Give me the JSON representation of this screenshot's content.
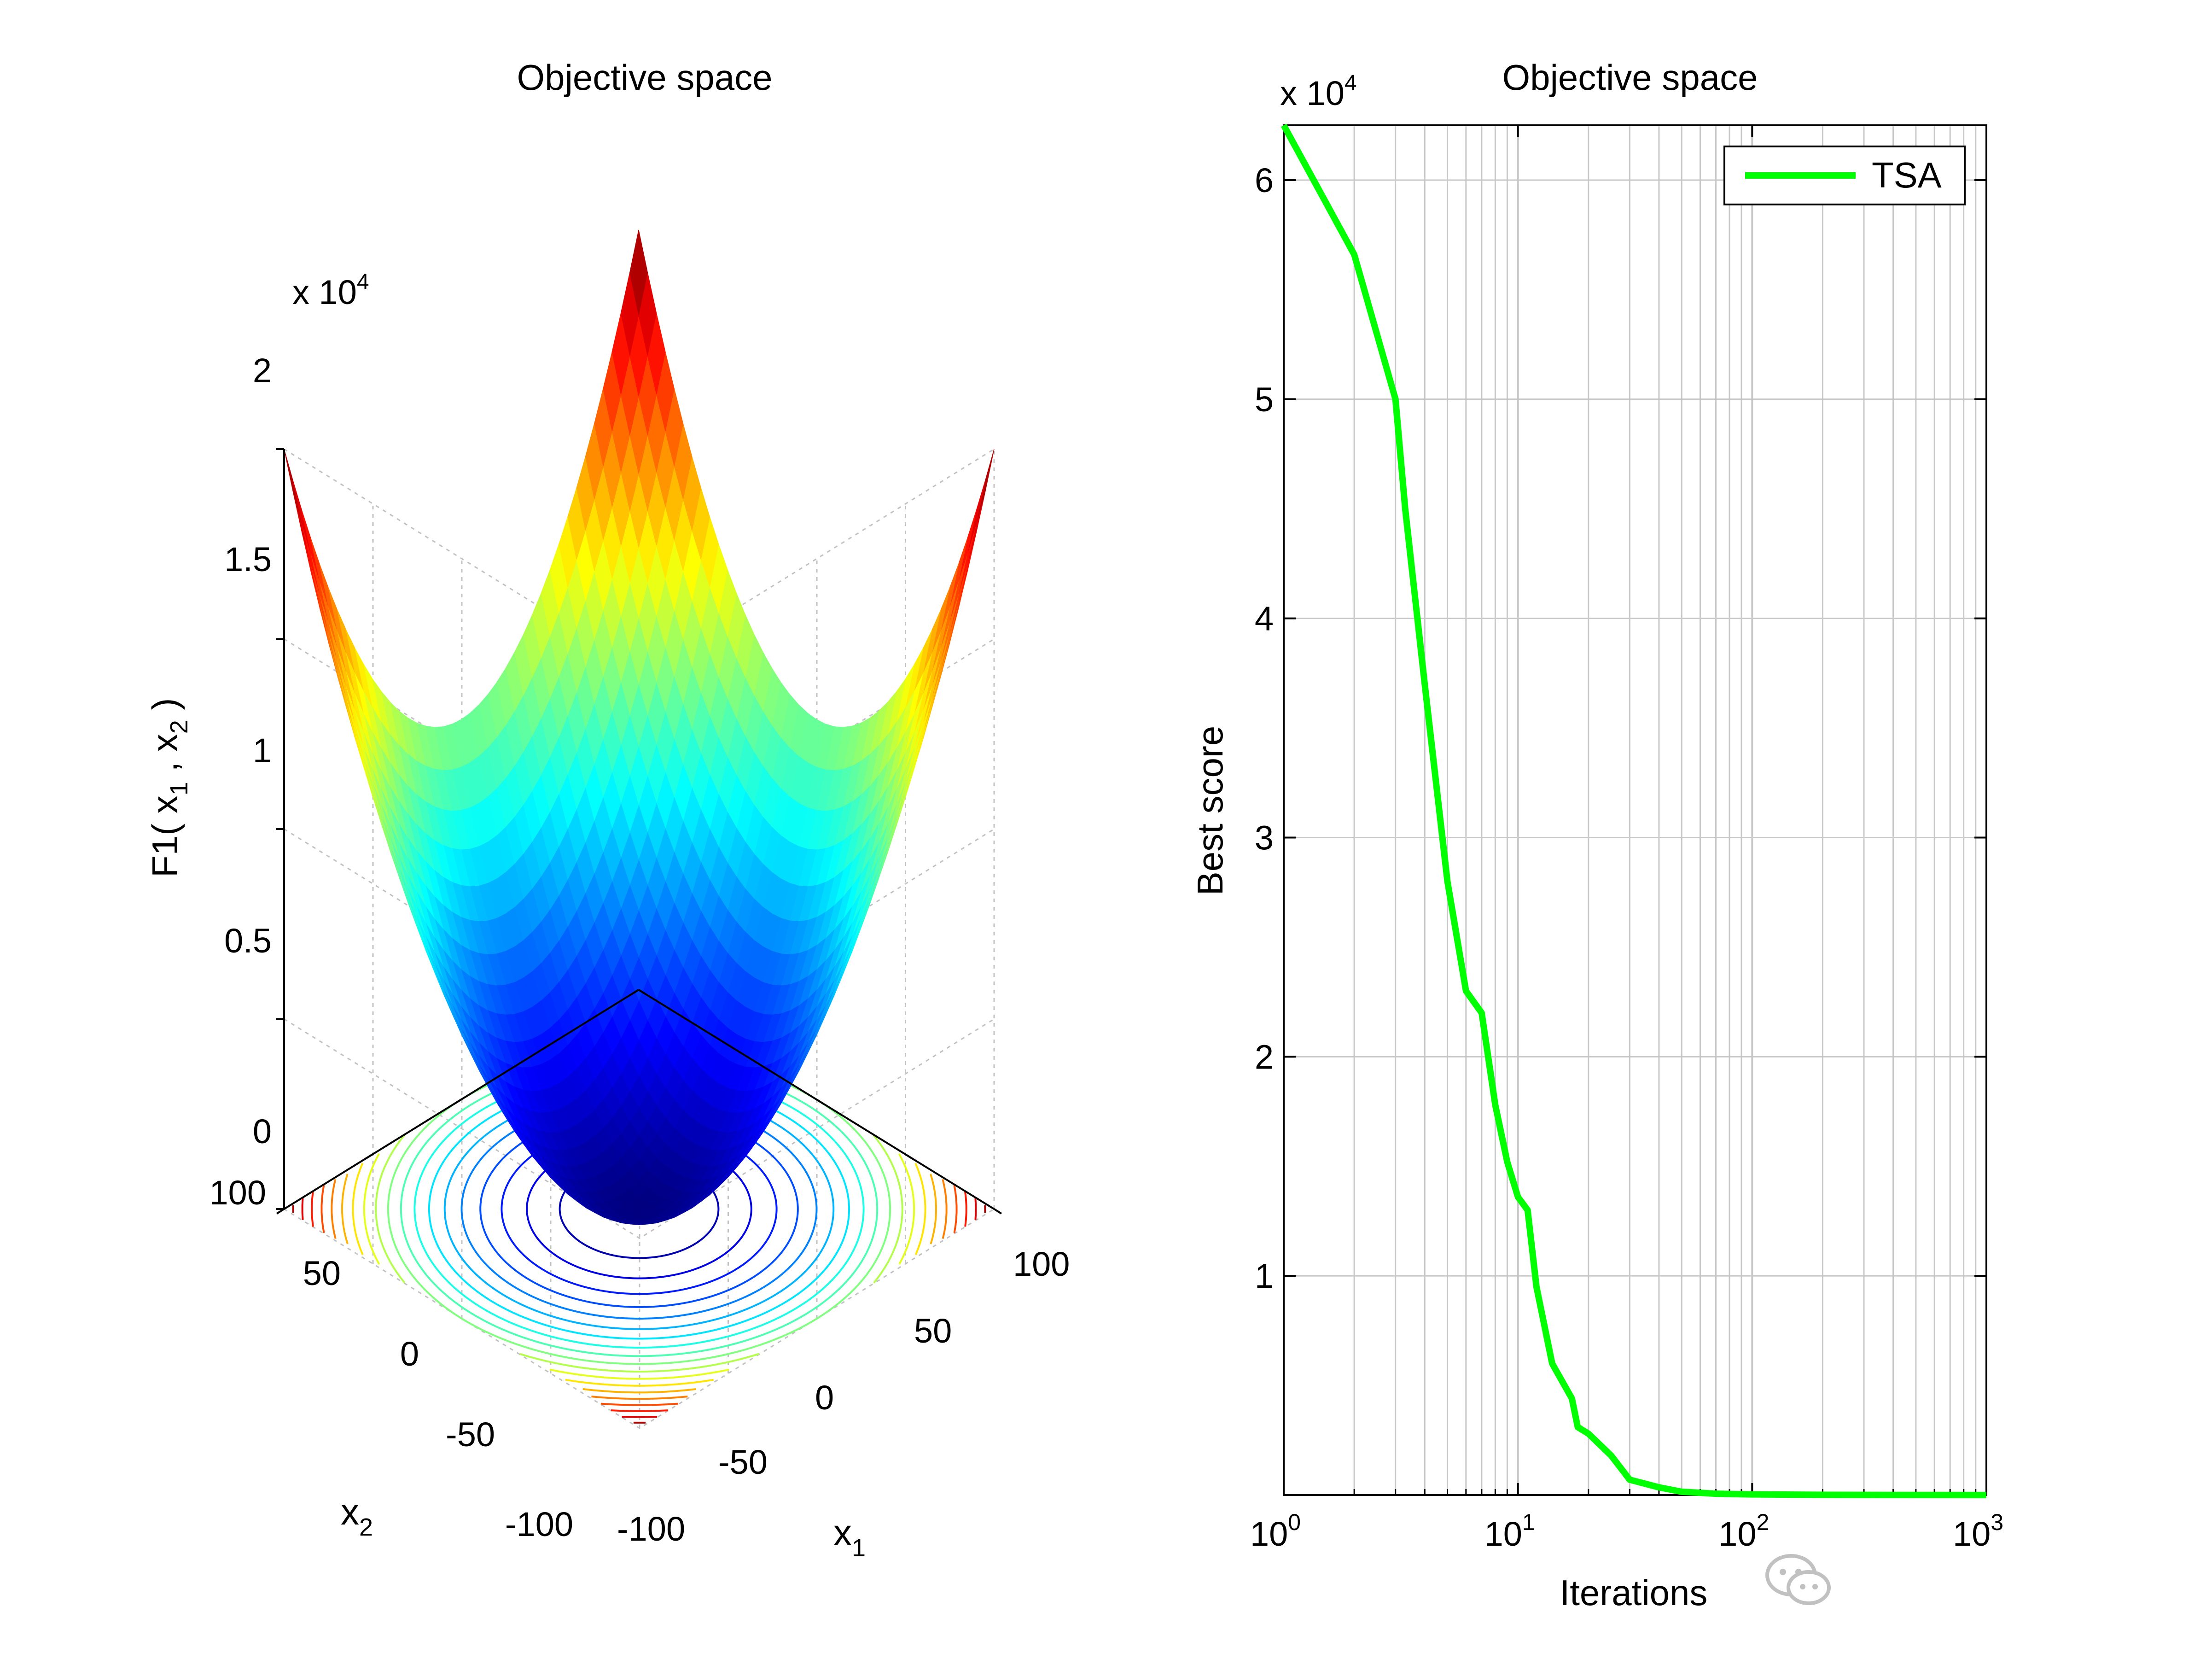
{
  "figure": {
    "left_panel": {
      "title": "Objective space",
      "z_exponent": "x 10",
      "z_exponent_power": "4",
      "z_ticks": [
        "2",
        "1.5",
        "1",
        "0.5",
        "0"
      ],
      "ylabel_main": "F1( x",
      "ylabel_sub1": "1",
      "ylabel_mid": " , x",
      "ylabel_sub2": "2",
      "ylabel_end": " )",
      "x2_label": "x",
      "x2_label_sub": "2",
      "x1_label": "x",
      "x1_label_sub": "1",
      "x2_ticks": [
        "100",
        "50",
        "0",
        "-50",
        "-100"
      ],
      "x1_ticks": [
        "-100",
        "-50",
        "0",
        "50",
        "100"
      ]
    },
    "right_panel": {
      "title": "Objective space",
      "y_exponent": "x 10",
      "y_exponent_power": "4",
      "y_ticks": [
        "6",
        "5",
        "4",
        "3",
        "2",
        "1"
      ],
      "ylabel": "Best score",
      "xlabel": "Iterations",
      "x_tick_base": "10",
      "x_tick_powers": [
        "0",
        "1",
        "2",
        "3"
      ],
      "legend_label": "TSA"
    }
  },
  "chart_data": [
    {
      "type": "surface",
      "title": "Objective space",
      "function": "F1 = x1^2 + x2^2",
      "x_range": [
        -100,
        100
      ],
      "y_range": [
        -100,
        100
      ],
      "z_range": [
        0,
        20000
      ],
      "x_label": "x1",
      "y_label": "x2",
      "z_label": "F1( x1 , x2 )",
      "colormap": "jet",
      "contour_levels": [
        1000,
        2000,
        3000,
        4000,
        5000,
        6000,
        7000,
        8000,
        9000,
        10000,
        11000,
        12000,
        13000,
        14000,
        15000,
        16000,
        17000,
        18000,
        19000
      ]
    },
    {
      "type": "line",
      "title": "Objective space",
      "xlabel": "Iterations",
      "ylabel": "Best score",
      "x_scale": "log",
      "xlim": [
        1,
        1000
      ],
      "ylim": [
        0,
        62500
      ],
      "grid": true,
      "legend_position": "top-right",
      "series": [
        {
          "name": "TSA",
          "color": "#00ff00",
          "x": [
            1,
            2,
            3,
            3.3,
            4,
            5,
            6,
            7,
            8,
            9,
            10,
            11,
            12,
            14,
            17,
            18,
            20,
            25,
            30,
            40,
            50,
            70,
            100,
            200,
            500,
            1000
          ],
          "y": [
            62500,
            56600,
            50000,
            45000,
            37000,
            28000,
            23000,
            22000,
            17800,
            15200,
            13600,
            13000,
            9500,
            6000,
            4400,
            3100,
            2800,
            1800,
            700,
            350,
            150,
            60,
            30,
            10,
            3,
            1
          ]
        }
      ]
    }
  ]
}
